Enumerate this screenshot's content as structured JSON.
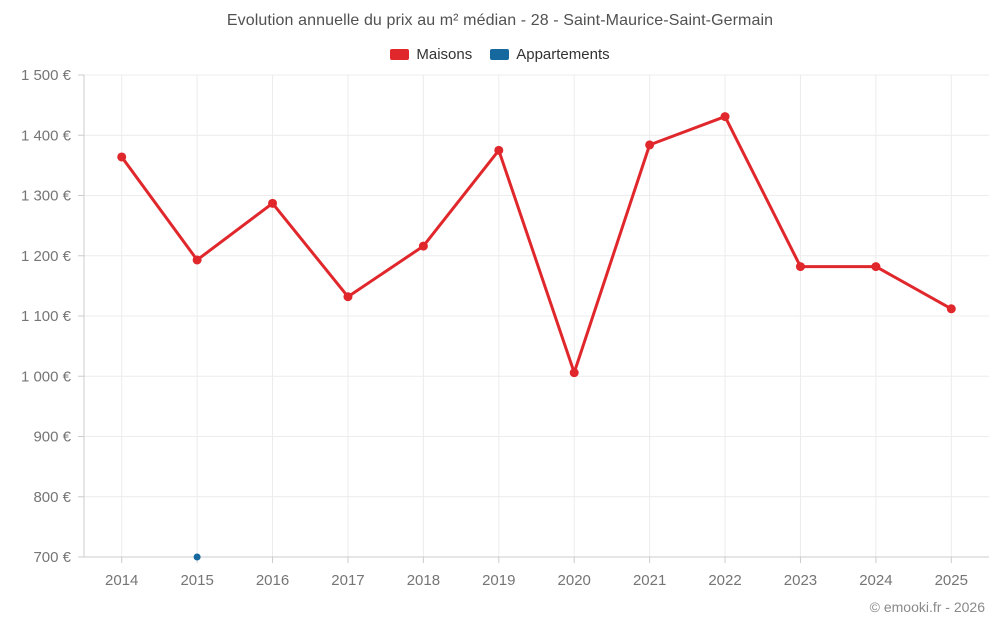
{
  "title": "Evolution annuelle du prix au m² médian - 28 - Saint-Maurice-Saint-Germain",
  "footer": "© emooki.fr - 2026",
  "colors": {
    "grid": "#ececec",
    "axis": "#cccccc",
    "tick_label": "#757575",
    "title_text": "#515151",
    "legend_text": "#333333",
    "footer_text": "#8a8a8a",
    "background": "#ffffff",
    "maisons": "#e0272c",
    "appartements": "#16699e"
  },
  "chart_data": {
    "type": "line",
    "title": "Evolution annuelle du prix au m² médian - 28 - Saint-Maurice-Saint-Germain",
    "categories": [
      "2014",
      "2015",
      "2016",
      "2017",
      "2018",
      "2019",
      "2020",
      "2021",
      "2022",
      "2023",
      "2024",
      "2025"
    ],
    "series": [
      {
        "name": "Maisons",
        "color": "#e0272c",
        "values": [
          1364,
          1193,
          1287,
          1132,
          1216,
          1375,
          1006,
          1384,
          1431,
          1182,
          1182,
          1112
        ]
      },
      {
        "name": "Appartements",
        "color": "#16699e",
        "values": [
          null,
          700,
          null,
          null,
          null,
          null,
          null,
          null,
          null,
          null,
          null,
          null
        ]
      }
    ],
    "xlabel": "",
    "ylabel": "",
    "ylim": [
      700,
      1500
    ],
    "ytick_step": 100,
    "ytick_suffix": " €",
    "grid": true,
    "legend_position": "top"
  }
}
